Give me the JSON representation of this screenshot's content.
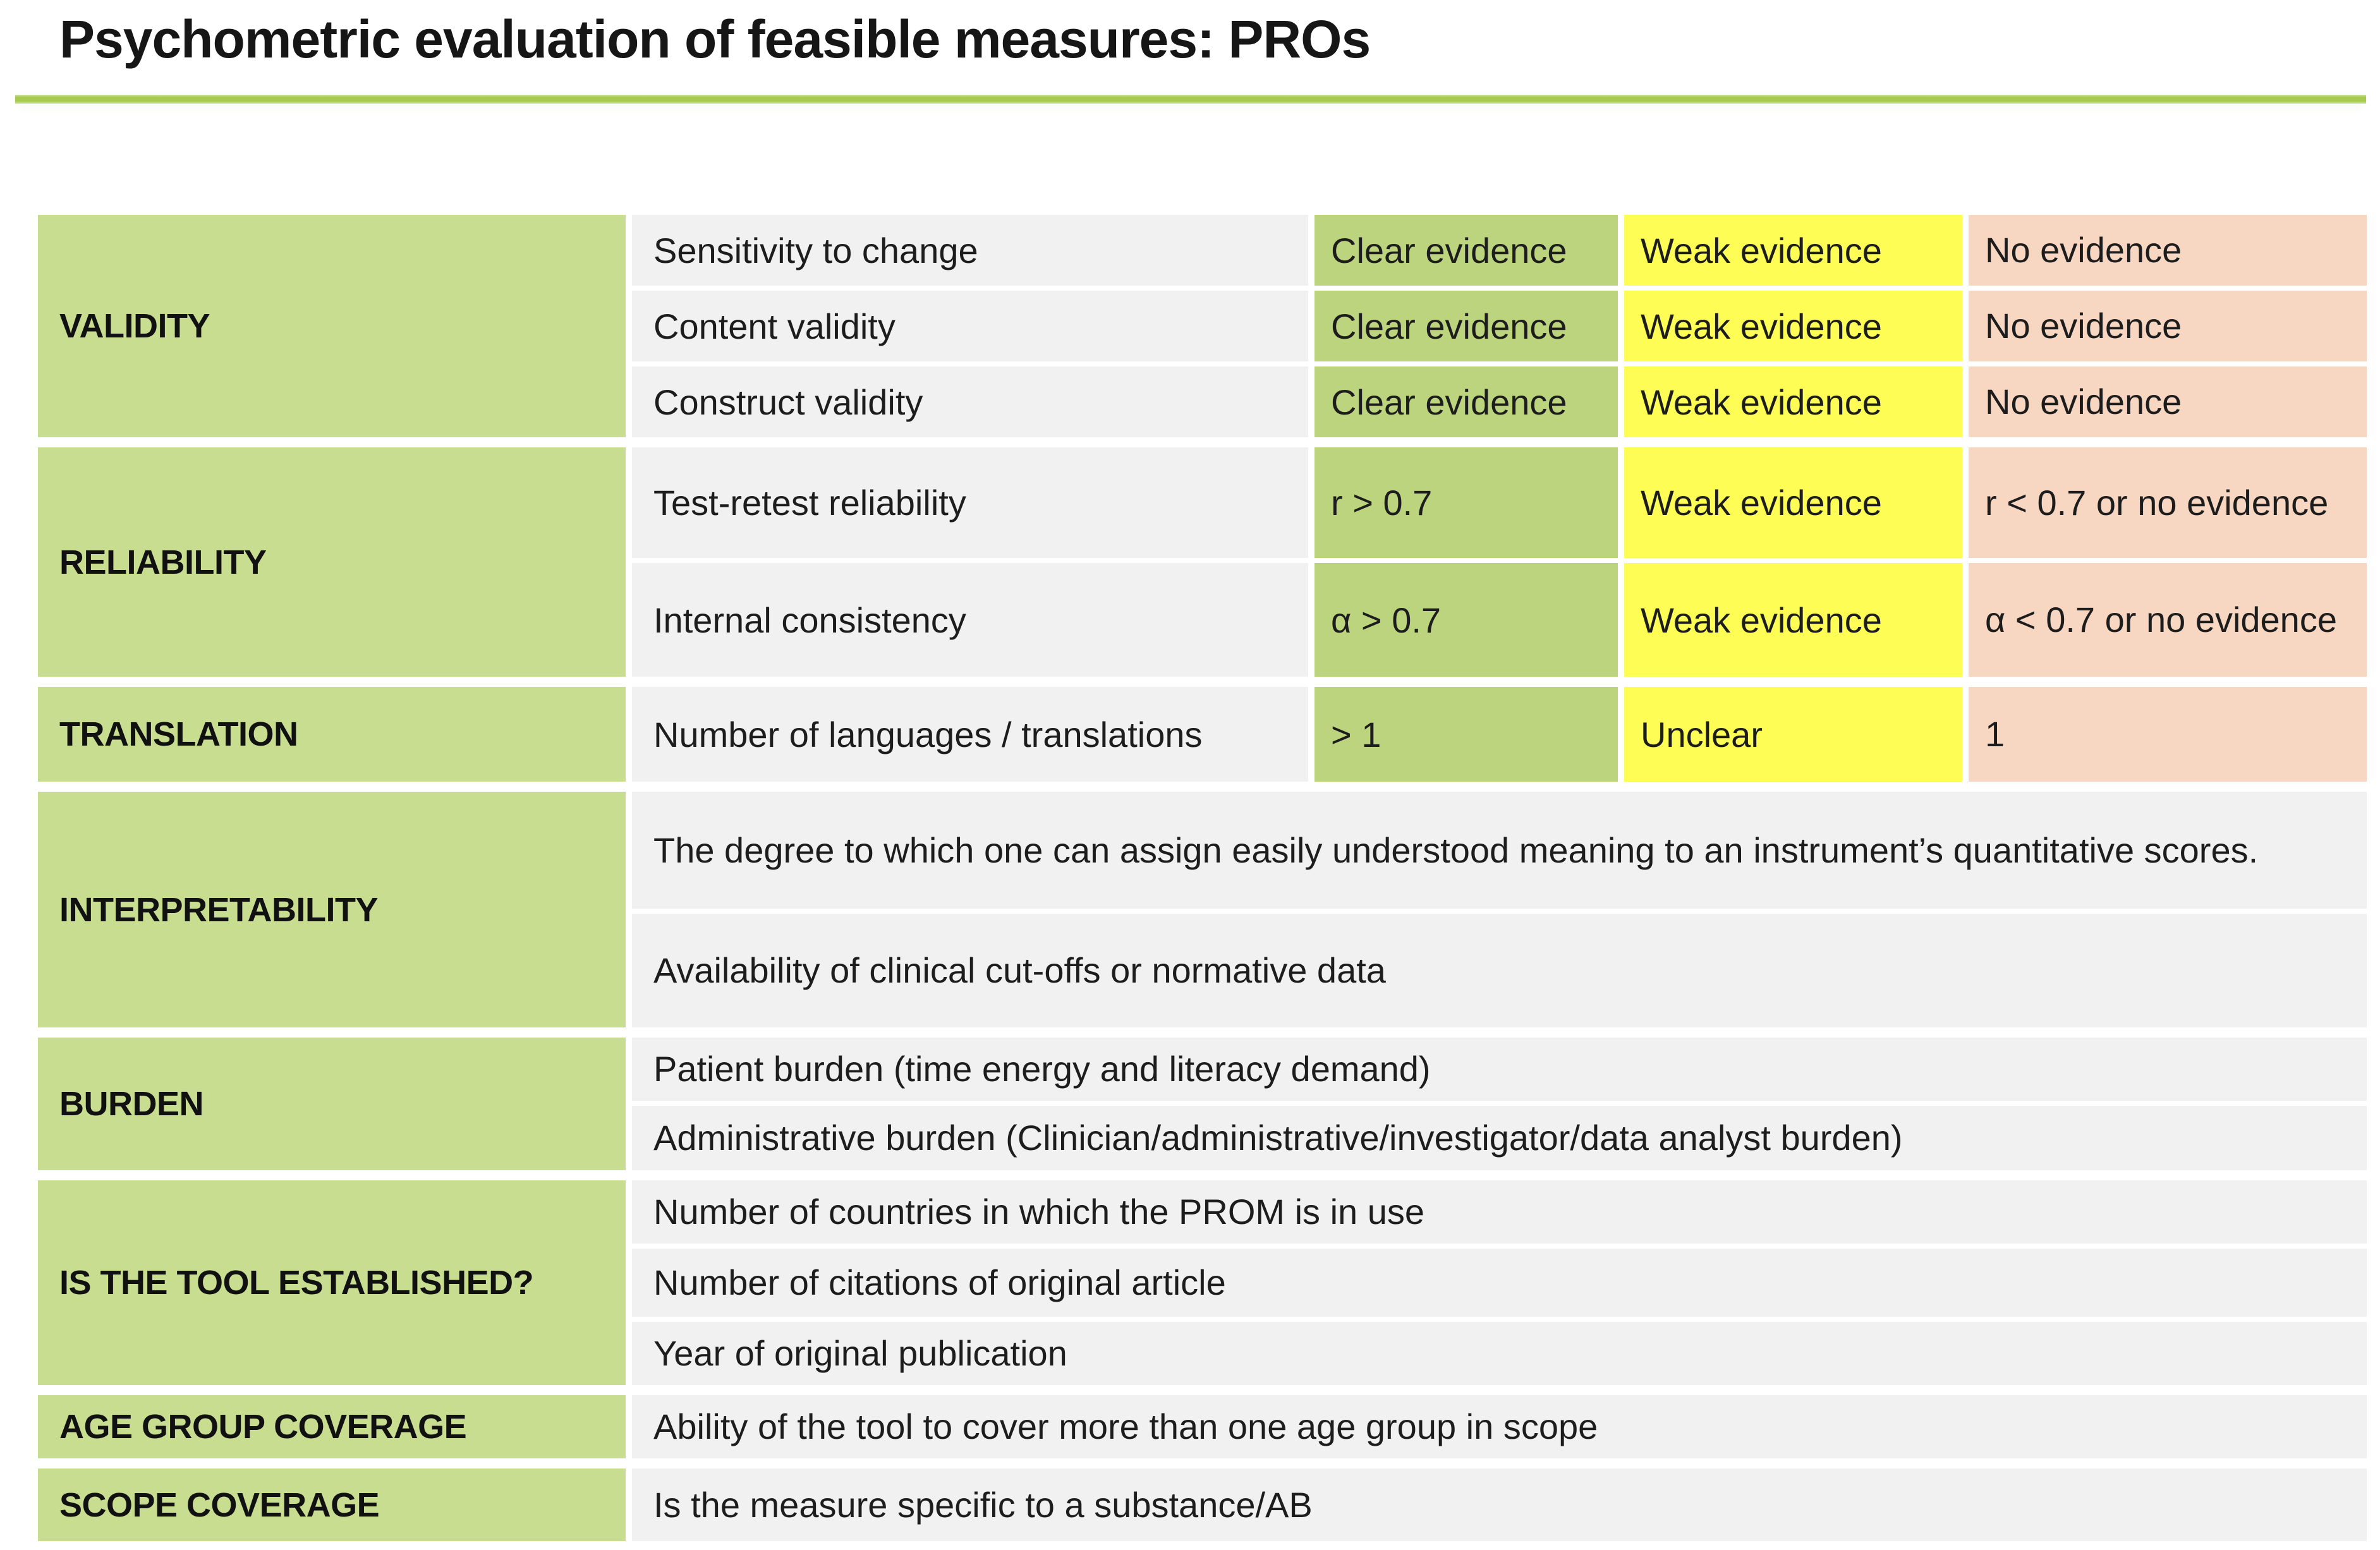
{
  "title": "Psychometric evaluation of feasible measures: PROs",
  "colors": {
    "title_text": "#161616",
    "title_rule_green": "#a6c94e",
    "section_label_green": "#c8dd8f",
    "criteria_gray": "#f1f1f1",
    "evidence_clear_green": "#bdd47f",
    "evidence_weak_yellow": "#fdfd55",
    "evidence_none_salmon": "#f8d7c2"
  },
  "table": {
    "sections": [
      {
        "label": "VALIDITY",
        "rows": [
          {
            "criterion": "Sensitivity to change",
            "levels": [
              "Clear evidence",
              "Weak evidence",
              "No evidence"
            ]
          },
          {
            "criterion": "Content validity",
            "levels": [
              "Clear evidence",
              "Weak evidence",
              "No evidence"
            ]
          },
          {
            "criterion": "Construct validity",
            "levels": [
              "Clear evidence",
              "Weak evidence",
              "No evidence"
            ]
          }
        ]
      },
      {
        "label": "RELIABILITY",
        "rows": [
          {
            "criterion": "Test-retest reliability",
            "levels": [
              "r > 0.7",
              "Weak evidence",
              "r < 0.7 or no evidence"
            ]
          },
          {
            "criterion": "Internal consistency",
            "levels": [
              "α > 0.7",
              "Weak evidence",
              "α < 0.7 or no evidence"
            ]
          }
        ]
      },
      {
        "label": "TRANSLATION",
        "rows": [
          {
            "criterion": "Number of languages / translations",
            "levels": [
              "> 1",
              "Unclear",
              "1"
            ]
          }
        ]
      },
      {
        "label": "INTERPRETABILITY",
        "rows": [
          {
            "criterion": "The degree to which one can assign easily understood meaning to an instrument’s quantitative scores."
          },
          {
            "criterion": "Availability of clinical cut-offs or normative data"
          }
        ]
      },
      {
        "label": "BURDEN",
        "rows": [
          {
            "criterion": "Patient burden (time energy and literacy demand)"
          },
          {
            "criterion": "Administrative burden (Clinician/administrative/investigator/data analyst burden)"
          }
        ]
      },
      {
        "label": "IS THE TOOL ESTABLISHED?",
        "rows": [
          {
            "criterion": "Number of countries in which the PROM is in use"
          },
          {
            "criterion": "Number of citations of original article"
          },
          {
            "criterion": "Year of original publication"
          }
        ]
      },
      {
        "label": "AGE GROUP COVERAGE",
        "rows": [
          {
            "criterion": "Ability of the tool to cover more than one age group in scope"
          }
        ]
      },
      {
        "label": "SCOPE COVERAGE",
        "rows": [
          {
            "criterion": "Is the measure specific to a substance/AB"
          }
        ]
      }
    ]
  }
}
